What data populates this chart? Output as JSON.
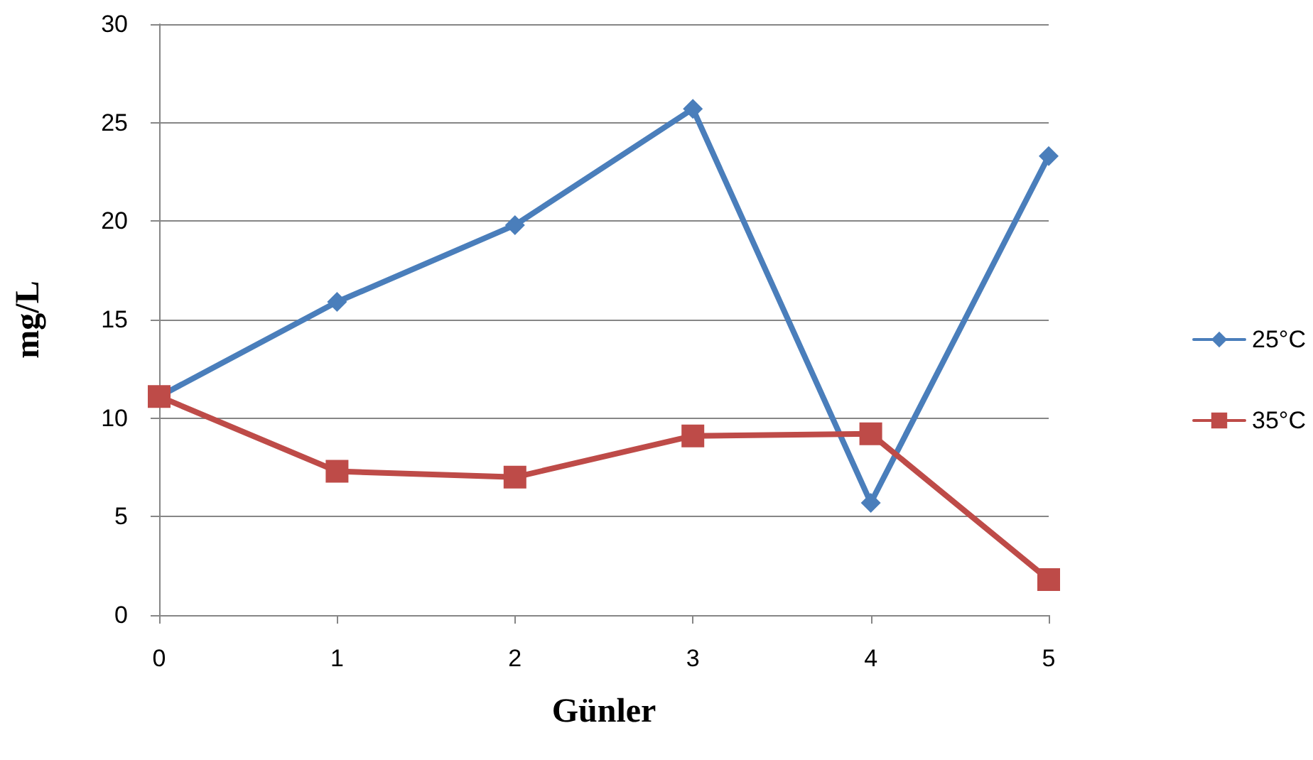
{
  "chart_data": {
    "type": "line",
    "xlabel": "Günler",
    "ylabel": "mg/L",
    "categories": [
      "0",
      "1",
      "2",
      "3",
      "4",
      "5"
    ],
    "series": [
      {
        "name": "25°C",
        "color": "#4a7ebb",
        "marker": "diamond",
        "values": [
          11.1,
          15.9,
          19.8,
          25.7,
          5.7,
          23.3
        ]
      },
      {
        "name": "35°C",
        "color": "#be4b48",
        "marker": "square",
        "values": [
          11.1,
          7.3,
          7.0,
          9.1,
          9.2,
          1.8
        ]
      }
    ],
    "ylim": [
      0,
      30
    ],
    "yticks": [
      0,
      5,
      10,
      15,
      20,
      25,
      30
    ],
    "grid": "y",
    "legend": "right",
    "line_style": "solid"
  }
}
